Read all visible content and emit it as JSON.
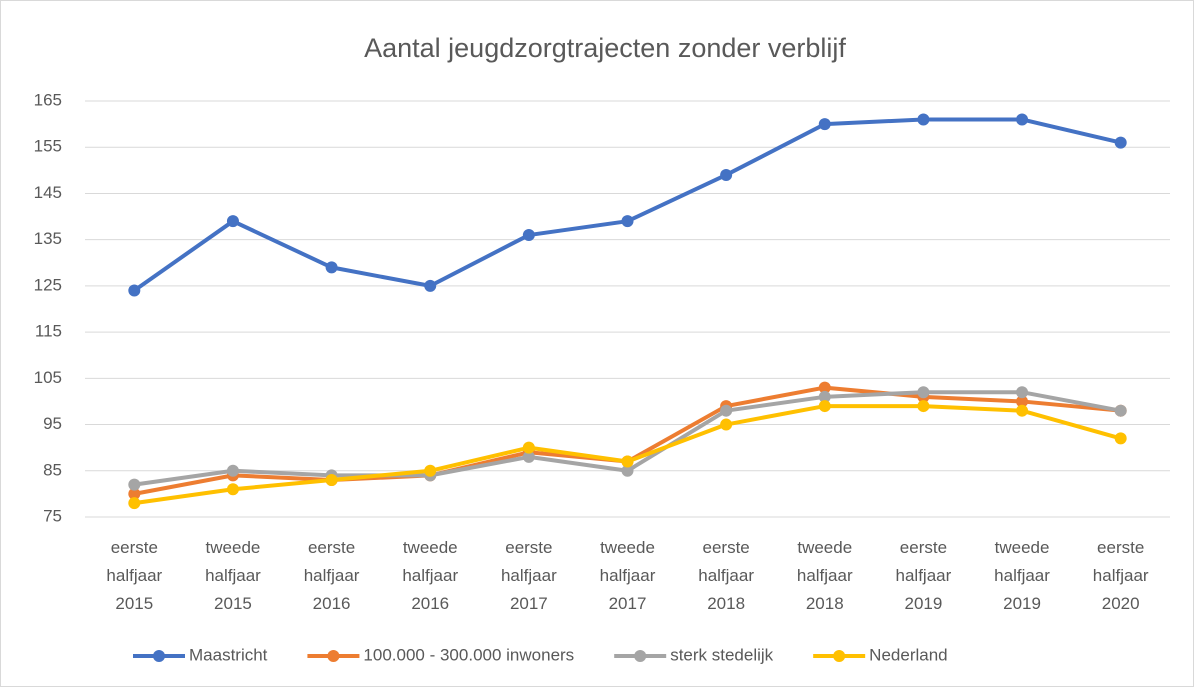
{
  "chart_data": {
    "type": "line",
    "title": "Aantal jeugdzorgtrajecten zonder verblijf",
    "categories": [
      "eerste halfjaar 2015",
      "tweede halfjaar 2015",
      "eerste halfjaar 2016",
      "tweede halfjaar 2016",
      "eerste halfjaar 2017",
      "tweede halfjaar 2017",
      "eerste halfjaar 2018",
      "tweede halfjaar 2018",
      "eerste halfjaar 2019",
      "tweede halfjaar 2019",
      "eerste halfjaar 2020"
    ],
    "series": [
      {
        "name": "Maastricht",
        "color": "#4472c4",
        "values": [
          124,
          139,
          129,
          125,
          136,
          139,
          149,
          160,
          161,
          161,
          156
        ]
      },
      {
        "name": "100.000 - 300.000 inwoners",
        "color": "#ed7d31",
        "values": [
          80,
          84,
          83,
          84,
          89,
          87,
          99,
          103,
          101,
          100,
          98
        ]
      },
      {
        "name": "sterk stedelijk",
        "color": "#a5a5a5",
        "values": [
          82,
          85,
          84,
          84,
          88,
          85,
          98,
          101,
          102,
          102,
          98
        ]
      },
      {
        "name": "Nederland",
        "color": "#ffc000",
        "values": [
          78,
          81,
          83,
          85,
          90,
          87,
          95,
          99,
          99,
          98,
          92
        ]
      }
    ],
    "ylim": [
      75,
      165
    ],
    "yticks": [
      75,
      85,
      95,
      105,
      115,
      125,
      135,
      145,
      155,
      165
    ],
    "grid": true,
    "legend": "bottom"
  }
}
